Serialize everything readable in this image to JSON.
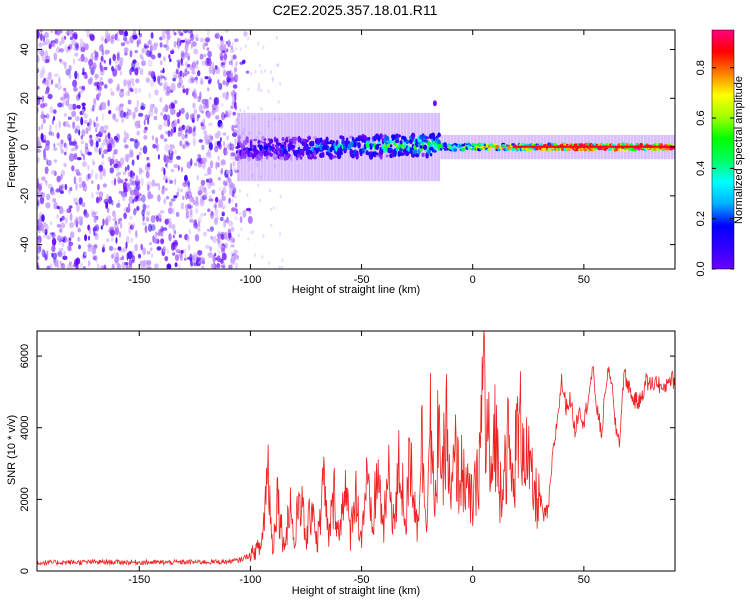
{
  "title": "C2E2.2025.357.18.01.R11",
  "chart_data": [
    {
      "type": "heatmap",
      "title": "C2E2.2025.357.18.01.R11",
      "xlabel": "Height of straight line (km)",
      "ylabel": "Frequency (Hz)",
      "xlim": [
        -196,
        91
      ],
      "ylim": [
        -50,
        48
      ],
      "xticks": [
        "-150",
        "-100",
        "-50",
        "0",
        "50"
      ],
      "yticks": [
        "-40",
        "-20",
        "0",
        "20",
        "40"
      ],
      "noise_region_km": [
        -196,
        -106
      ],
      "signal_band": {
        "center_hz": 0,
        "halfwidth_hz_noisy": 6,
        "halfwidth_hz_clean": 3
      },
      "colorbar": {
        "label": "Normalized spectral amplitude",
        "range": [
          0,
          0.95
        ],
        "ticks": [
          "0.0",
          "0.2",
          "0.4",
          "0.6",
          "0.8"
        ],
        "colors": [
          "#ffffff",
          "#6a00ff",
          "#0000ff",
          "#00ffff",
          "#00ff00",
          "#ffff00",
          "#ff8000",
          "#ff0000",
          "#ff0080"
        ]
      }
    },
    {
      "type": "line",
      "xlabel": "Height of straight line (km)",
      "ylabel": "SNR (10 * v/v)",
      "xlim": [
        -196,
        91
      ],
      "ylim": [
        0,
        6700
      ],
      "xticks": [
        "-150",
        "-100",
        "-50",
        "0",
        "50"
      ],
      "yticks": [
        "0",
        "2000",
        "4000",
        "6000"
      ],
      "color": "#ee2222",
      "series": [
        {
          "name": "SNR",
          "x": [
            -196,
            -170,
            -140,
            -110,
            -105,
            -100,
            -95,
            -92,
            -90,
            -88,
            -85,
            -82,
            -80,
            -78,
            -75,
            -72,
            -70,
            -67,
            -65,
            -62,
            -60,
            -58,
            -55,
            -53,
            -50,
            -48,
            -45,
            -43,
            -40,
            -38,
            -35,
            -33,
            -30,
            -28,
            -25,
            -23,
            -21,
            -19,
            -17,
            -15,
            -14,
            -12,
            -10,
            -8,
            -6,
            -4,
            -2,
            0,
            2,
            4,
            5,
            6,
            7,
            8,
            10,
            12,
            14,
            16,
            18,
            20,
            22,
            23,
            25,
            28,
            30,
            32,
            34,
            36,
            38,
            40,
            42,
            44,
            46,
            48,
            50,
            52,
            54,
            56,
            58,
            60,
            62,
            64,
            66,
            68,
            70,
            72,
            75,
            78,
            80,
            83,
            86,
            88,
            91
          ],
          "y": [
            230,
            250,
            240,
            260,
            300,
            450,
            700,
            2950,
            500,
            2200,
            700,
            1900,
            600,
            2400,
            800,
            2000,
            700,
            2500,
            900,
            2200,
            800,
            2600,
            1000,
            2300,
            900,
            2500,
            1100,
            2800,
            1200,
            2600,
            1300,
            3000,
            1400,
            3400,
            1200,
            3700,
            1500,
            4200,
            1300,
            5200,
            1800,
            4400,
            1700,
            3200,
            2600,
            2800,
            2000,
            1900,
            2400,
            4200,
            6700,
            3000,
            4500,
            2000,
            4200,
            2300,
            3000,
            3500,
            2300,
            3800,
            4000,
            3800,
            2900,
            2000,
            2100,
            1500,
            1700,
            3200,
            4200,
            5300,
            4600,
            4800,
            3900,
            4600,
            4100,
            4900,
            5600,
            4500,
            3800,
            5300,
            5600,
            4100,
            3600,
            5500,
            5200,
            4800,
            4700,
            5300,
            5200,
            5300,
            5000,
            5400,
            5300
          ]
        }
      ]
    }
  ]
}
